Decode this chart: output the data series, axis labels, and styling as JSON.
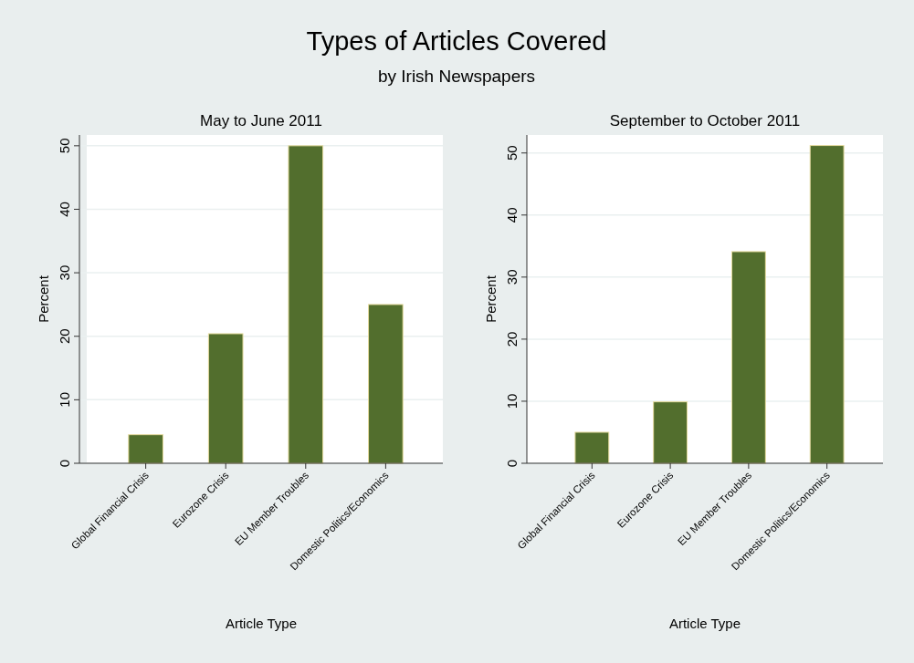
{
  "chart_data": [
    {
      "type": "other",
      "title": "Types of Articles Covered",
      "subtitle": "by Irish Newspapers"
    },
    {
      "type": "bar",
      "title": "May to June 2011",
      "xlabel": "Article Type",
      "ylabel": "Percent",
      "categories": [
        "Global Financial Crisis",
        "Eurozone Crisis",
        "EU Member Troubles",
        "Domestic Politics/Economics"
      ],
      "values": [
        4.5,
        20.4,
        50,
        25
      ],
      "color": "#526e2d",
      "ylim": [
        0,
        51.7
      ],
      "yticks": [
        0,
        10,
        20,
        30,
        40,
        50
      ],
      "grid": "y"
    },
    {
      "type": "bar",
      "title": "September to October 2011",
      "xlabel": "Article Type",
      "ylabel": "Percent",
      "categories": [
        "Global Financial Crisis",
        "Eurozone Crisis",
        "EU Member Troubles",
        "Domestic Politics/Economics"
      ],
      "values": [
        5,
        9.9,
        34.1,
        51.2
      ],
      "color": "#526e2d",
      "ylim": [
        0,
        52.9
      ],
      "yticks": [
        0,
        10,
        20,
        30,
        40,
        50
      ],
      "grid": "y"
    }
  ]
}
